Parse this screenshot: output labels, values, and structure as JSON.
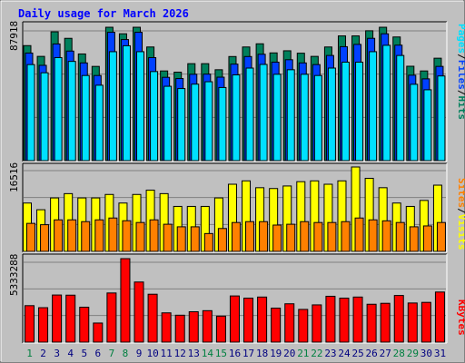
{
  "title": "Daily usage for March 2026",
  "colors": {
    "background": "#c0c0c0",
    "title": "#0000ff",
    "weekend_day": "#008040",
    "weekday_day": "#000080",
    "hits": "#00805c",
    "files": "#0040ff",
    "pages": "#00e0ff",
    "visits": "#ffff00",
    "sites": "#ff8000",
    "kbytes": "#ff0000"
  },
  "right_labels": {
    "top": [
      "Pages",
      "/",
      "Files",
      "/",
      "Hits"
    ],
    "middle": [
      "Sites",
      "/",
      "Visits"
    ],
    "bottom": [
      "KBytes"
    ]
  },
  "chart_data": [
    {
      "type": "bar",
      "name": "hits_files_pages",
      "y_axis_label": "87918",
      "ylim": [
        0,
        87918
      ],
      "categories": [
        "1",
        "2",
        "3",
        "4",
        "5",
        "6",
        "7",
        "8",
        "9",
        "10",
        "11",
        "12",
        "13",
        "14",
        "15",
        "16",
        "17",
        "18",
        "19",
        "20",
        "21",
        "22",
        "23",
        "24",
        "25",
        "26",
        "27",
        "28",
        "29",
        "30",
        "31"
      ],
      "weekend_days": [
        "1",
        "7",
        "8",
        "14",
        "15",
        "21",
        "22",
        "28",
        "29"
      ],
      "series": [
        {
          "name": "Hits",
          "values": [
            75800,
            68700,
            84900,
            80600,
            70300,
            62100,
            87900,
            83600,
            87900,
            74900,
            59100,
            58300,
            63900,
            63900,
            59900,
            68600,
            74900,
            77000,
            71000,
            72400,
            70800,
            68700,
            74900,
            82200,
            82200,
            85600,
            87900,
            81500,
            62200,
            59100,
            67500
          ]
        },
        {
          "name": "Files",
          "values": [
            70900,
            62800,
            76900,
            72200,
            64400,
            56100,
            84600,
            79800,
            84600,
            67900,
            54900,
            54100,
            56900,
            57000,
            55000,
            63600,
            68600,
            70100,
            64900,
            66500,
            64400,
            63300,
            69300,
            75100,
            76600,
            80600,
            83600,
            76100,
            56300,
            53900,
            62100
          ]
        },
        {
          "name": "Pages",
          "values": [
            63300,
            57900,
            67900,
            65400,
            56100,
            49700,
            71800,
            75700,
            71800,
            58700,
            49000,
            47500,
            50400,
            52000,
            48200,
            56500,
            61000,
            63400,
            56900,
            59900,
            56900,
            56100,
            61000,
            64900,
            64900,
            71800,
            76000,
            69300,
            50300,
            46700,
            55800
          ]
        }
      ]
    },
    {
      "type": "bar",
      "name": "visits_sites",
      "y_axis_label": "16516",
      "ylim": [
        0,
        16516
      ],
      "categories": [
        "1",
        "2",
        "3",
        "4",
        "5",
        "6",
        "7",
        "8",
        "9",
        "10",
        "11",
        "12",
        "13",
        "14",
        "15",
        "16",
        "17",
        "18",
        "19",
        "20",
        "21",
        "22",
        "23",
        "24",
        "25",
        "26",
        "27",
        "28",
        "29",
        "30",
        "31"
      ],
      "series": [
        {
          "name": "Visits",
          "values": [
            9460,
            8150,
            10460,
            11300,
            10460,
            10460,
            11140,
            9460,
            11140,
            11980,
            11300,
            8800,
            8800,
            8800,
            10460,
            13140,
            13800,
            12460,
            12300,
            12800,
            13640,
            13800,
            13140,
            13800,
            16516,
            14300,
            12460,
            9460,
            8800,
            9970,
            12960
          ]
        },
        {
          "name": "Sites",
          "values": [
            5480,
            5220,
            6170,
            6170,
            5820,
            6170,
            6530,
            6000,
            5650,
            6170,
            5310,
            4810,
            4810,
            3490,
            4480,
            5650,
            5820,
            5820,
            5150,
            5310,
            5820,
            5650,
            5650,
            5820,
            6530,
            6170,
            5980,
            5650,
            4810,
            4980,
            5650
          ]
        }
      ]
    },
    {
      "type": "bar",
      "name": "kbytes",
      "y_axis_label": "5333288",
      "ylim": [
        0,
        5333288
      ],
      "categories": [
        "1",
        "2",
        "3",
        "4",
        "5",
        "6",
        "7",
        "8",
        "9",
        "10",
        "11",
        "12",
        "13",
        "14",
        "15",
        "16",
        "17",
        "18",
        "19",
        "20",
        "21",
        "22",
        "23",
        "24",
        "25",
        "26",
        "27",
        "28",
        "29",
        "30",
        "31"
      ],
      "series": [
        {
          "name": "KBytes",
          "values": [
            2330000,
            2200000,
            3010000,
            3000000,
            2230000,
            1220000,
            3140000,
            5333288,
            3840000,
            3060000,
            1870000,
            1720000,
            1940000,
            2010000,
            1660000,
            2950000,
            2810000,
            2880000,
            2170000,
            2450000,
            2090000,
            2380000,
            2930000,
            2810000,
            2880000,
            2420000,
            2480000,
            2980000,
            2500000,
            2540000,
            3200000
          ]
        }
      ]
    }
  ]
}
